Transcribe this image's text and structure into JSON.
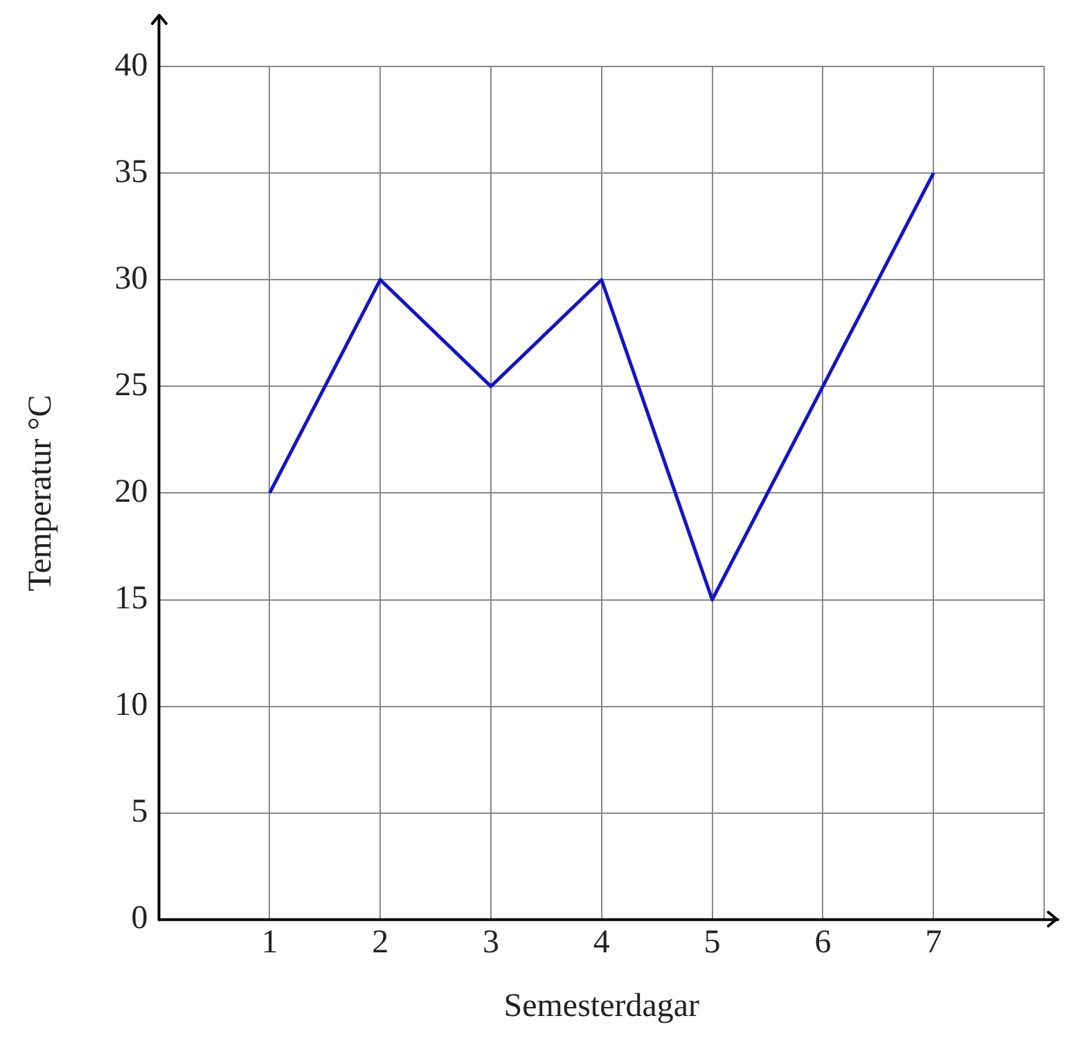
{
  "chart_data": {
    "type": "line",
    "xlabel": "Semesterdagar",
    "ylabel": "Temperatur °C",
    "x": [
      1,
      2,
      3,
      4,
      5,
      6,
      7
    ],
    "series": [
      {
        "color": "#1414c8",
        "values": [
          20,
          30,
          25,
          30,
          15,
          25,
          35
        ]
      }
    ],
    "xlim": [
      0,
      8
    ],
    "xticks": [
      1,
      2,
      3,
      4,
      5,
      6,
      7,
      {
        "value": 8,
        "label": null
      }
    ],
    "ylim": [
      0,
      40
    ],
    "yticks": [
      0,
      5,
      10,
      15,
      20,
      25,
      30,
      35,
      40
    ],
    "grid": true,
    "legend": false,
    "marker": "none",
    "line_style": "solid"
  }
}
